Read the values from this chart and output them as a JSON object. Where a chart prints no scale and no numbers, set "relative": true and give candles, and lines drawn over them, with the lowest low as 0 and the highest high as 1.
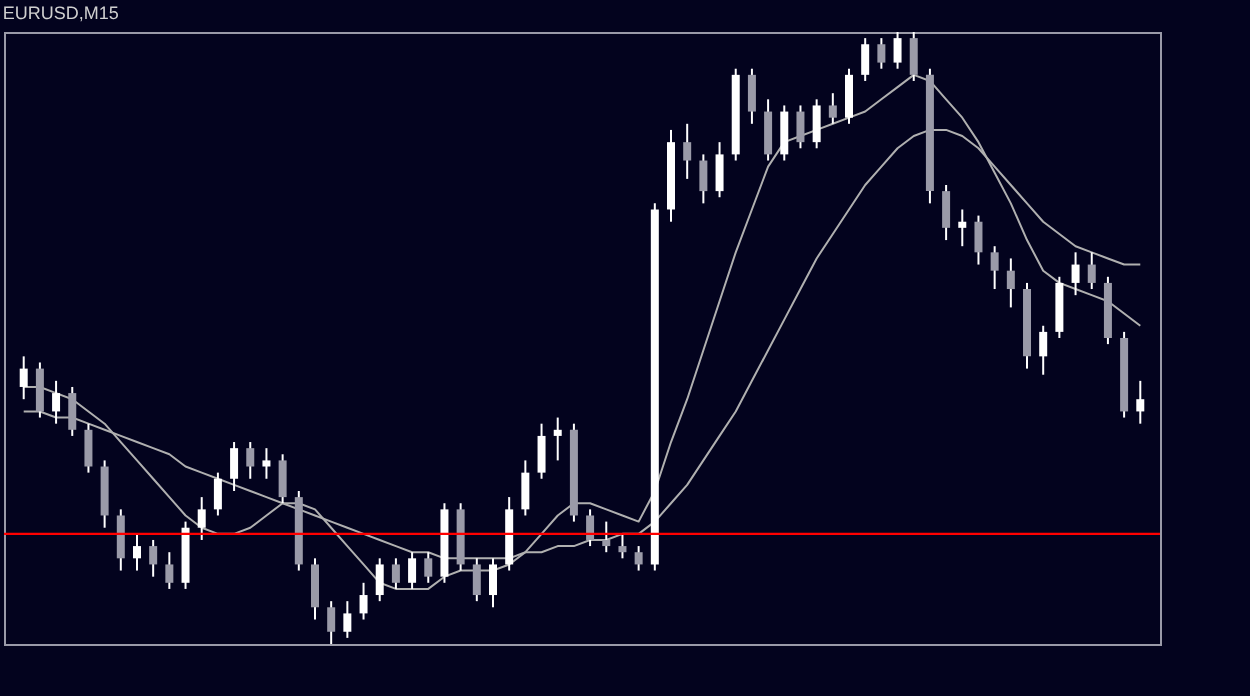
{
  "chart_data": {
    "type": "candlestick",
    "title": "EURUSD,M15",
    "relative": true,
    "tick_labels": false,
    "categories": [
      null,
      null,
      null,
      null,
      null,
      null,
      null,
      null,
      null,
      null,
      null,
      null,
      null,
      null,
      null,
      null,
      null,
      null,
      null,
      null,
      null,
      null,
      null,
      null,
      null,
      null,
      null,
      null,
      null,
      null,
      null,
      null,
      null,
      null,
      null,
      null,
      null,
      null,
      null,
      null,
      null,
      null,
      null,
      null,
      null,
      null,
      null,
      null,
      null,
      null,
      null,
      null,
      null,
      null,
      null,
      null,
      null,
      null,
      null,
      null,
      null,
      null,
      null,
      null,
      null,
      null,
      null,
      null,
      null,
      null
    ],
    "series": [
      {
        "type": "candlestick",
        "color": "#ffffff",
        "colors": [
          "#ffffff",
          "#9a9aa8",
          "#ffffff",
          "#9a9aa8",
          "#9a9aa8",
          "#9a9aa8",
          "#9a9aa8",
          "#ffffff",
          "#9a9aa8",
          "#9a9aa8",
          "#ffffff",
          "#ffffff",
          "#ffffff",
          "#ffffff",
          "#9a9aa8",
          "#ffffff",
          "#9a9aa8",
          "#9a9aa8",
          "#9a9aa8",
          "#9a9aa8",
          "#ffffff",
          "#ffffff",
          "#ffffff",
          "#9a9aa8",
          "#ffffff",
          "#9a9aa8",
          "#ffffff",
          "#9a9aa8",
          "#9a9aa8",
          "#ffffff",
          "#ffffff",
          "#ffffff",
          "#ffffff",
          "#ffffff",
          "#9a9aa8",
          "#9a9aa8",
          "#9a9aa8",
          "#9a9aa8",
          "#9a9aa8",
          "#ffffff",
          "#ffffff",
          "#9a9aa8",
          "#9a9aa8",
          "#ffffff",
          "#ffffff",
          "#9a9aa8",
          "#9a9aa8",
          "#ffffff",
          "#9a9aa8",
          "#ffffff",
          "#9a9aa8",
          "#ffffff",
          "#ffffff",
          "#9a9aa8",
          "#ffffff",
          "#9a9aa8",
          "#9a9aa8",
          "#9a9aa8",
          "#ffffff",
          "#9a9aa8",
          "#9a9aa8",
          "#9a9aa8",
          "#9a9aa8",
          "#ffffff",
          "#ffffff",
          "#ffffff",
          "#9a9aa8",
          "#9a9aa8",
          "#9a9aa8",
          "#ffffff"
        ],
        "ohlc": [
          [
            0.42,
            0.47,
            0.4,
            0.45
          ],
          [
            0.45,
            0.46,
            0.37,
            0.38
          ],
          [
            0.38,
            0.43,
            0.36,
            0.41
          ],
          [
            0.41,
            0.42,
            0.34,
            0.35
          ],
          [
            0.35,
            0.36,
            0.28,
            0.29
          ],
          [
            0.29,
            0.3,
            0.19,
            0.21
          ],
          [
            0.21,
            0.22,
            0.12,
            0.14
          ],
          [
            0.14,
            0.18,
            0.12,
            0.16
          ],
          [
            0.16,
            0.17,
            0.11,
            0.13
          ],
          [
            0.13,
            0.15,
            0.09,
            0.1
          ],
          [
            0.1,
            0.2,
            0.09,
            0.19
          ],
          [
            0.19,
            0.24,
            0.17,
            0.22
          ],
          [
            0.22,
            0.28,
            0.21,
            0.27
          ],
          [
            0.27,
            0.33,
            0.25,
            0.32
          ],
          [
            0.32,
            0.33,
            0.27,
            0.29
          ],
          [
            0.29,
            0.32,
            0.27,
            0.3
          ],
          [
            0.3,
            0.31,
            0.23,
            0.24
          ],
          [
            0.24,
            0.25,
            0.12,
            0.13
          ],
          [
            0.13,
            0.14,
            0.04,
            0.06
          ],
          [
            0.06,
            0.07,
            0.0,
            0.02
          ],
          [
            0.02,
            0.07,
            0.01,
            0.05
          ],
          [
            0.05,
            0.1,
            0.04,
            0.08
          ],
          [
            0.08,
            0.14,
            0.07,
            0.13
          ],
          [
            0.13,
            0.14,
            0.09,
            0.1
          ],
          [
            0.1,
            0.15,
            0.09,
            0.14
          ],
          [
            0.14,
            0.15,
            0.1,
            0.11
          ],
          [
            0.11,
            0.23,
            0.1,
            0.22
          ],
          [
            0.22,
            0.23,
            0.12,
            0.13
          ],
          [
            0.13,
            0.14,
            0.07,
            0.08
          ],
          [
            0.08,
            0.14,
            0.06,
            0.13
          ],
          [
            0.13,
            0.24,
            0.12,
            0.22
          ],
          [
            0.22,
            0.3,
            0.21,
            0.28
          ],
          [
            0.28,
            0.36,
            0.27,
            0.34
          ],
          [
            0.34,
            0.37,
            0.3,
            0.35
          ],
          [
            0.35,
            0.36,
            0.2,
            0.21
          ],
          [
            0.21,
            0.22,
            0.16,
            0.17
          ],
          [
            0.17,
            0.2,
            0.15,
            0.16
          ],
          [
            0.16,
            0.18,
            0.14,
            0.15
          ],
          [
            0.15,
            0.16,
            0.12,
            0.13
          ],
          [
            0.13,
            0.72,
            0.12,
            0.71
          ],
          [
            0.71,
            0.84,
            0.69,
            0.82
          ],
          [
            0.82,
            0.85,
            0.76,
            0.79
          ],
          [
            0.79,
            0.8,
            0.72,
            0.74
          ],
          [
            0.74,
            0.82,
            0.73,
            0.8
          ],
          [
            0.8,
            0.94,
            0.79,
            0.93
          ],
          [
            0.93,
            0.94,
            0.85,
            0.87
          ],
          [
            0.87,
            0.89,
            0.79,
            0.8
          ],
          [
            0.8,
            0.88,
            0.79,
            0.87
          ],
          [
            0.87,
            0.88,
            0.81,
            0.82
          ],
          [
            0.82,
            0.89,
            0.81,
            0.88
          ],
          [
            0.88,
            0.9,
            0.85,
            0.86
          ],
          [
            0.86,
            0.94,
            0.85,
            0.93
          ],
          [
            0.93,
            0.99,
            0.92,
            0.98
          ],
          [
            0.98,
            0.99,
            0.94,
            0.95
          ],
          [
            0.95,
            1.0,
            0.94,
            0.99
          ],
          [
            0.99,
            1.0,
            0.92,
            0.93
          ],
          [
            0.93,
            0.94,
            0.72,
            0.74
          ],
          [
            0.74,
            0.75,
            0.66,
            0.68
          ],
          [
            0.68,
            0.71,
            0.65,
            0.69
          ],
          [
            0.69,
            0.7,
            0.62,
            0.64
          ],
          [
            0.64,
            0.65,
            0.58,
            0.61
          ],
          [
            0.61,
            0.63,
            0.55,
            0.58
          ],
          [
            0.58,
            0.59,
            0.45,
            0.47
          ],
          [
            0.47,
            0.52,
            0.44,
            0.51
          ],
          [
            0.51,
            0.6,
            0.5,
            0.59
          ],
          [
            0.59,
            0.64,
            0.57,
            0.62
          ],
          [
            0.62,
            0.64,
            0.58,
            0.59
          ],
          [
            0.59,
            0.6,
            0.49,
            0.5
          ],
          [
            0.5,
            0.51,
            0.37,
            0.38
          ],
          [
            0.38,
            0.43,
            0.36,
            0.4
          ]
        ]
      },
      {
        "type": "line",
        "color": "#b0b0b0",
        "values": [
          0.42,
          0.42,
          0.41,
          0.4,
          0.38,
          0.36,
          0.33,
          0.3,
          0.27,
          0.24,
          0.21,
          0.19,
          0.18,
          0.18,
          0.19,
          0.21,
          0.23,
          0.23,
          0.22,
          0.19,
          0.16,
          0.13,
          0.1,
          0.09,
          0.09,
          0.09,
          0.11,
          0.12,
          0.12,
          0.12,
          0.13,
          0.15,
          0.18,
          0.21,
          0.23,
          0.23,
          0.22,
          0.21,
          0.2,
          0.25,
          0.33,
          0.4,
          0.48,
          0.56,
          0.64,
          0.71,
          0.78,
          0.82,
          0.83,
          0.84,
          0.85,
          0.86,
          0.87,
          0.89,
          0.91,
          0.93,
          0.92,
          0.89,
          0.86,
          0.82,
          0.77,
          0.72,
          0.66,
          0.61,
          0.59,
          0.58,
          0.57,
          0.56,
          0.54,
          0.52
        ]
      },
      {
        "type": "line",
        "color": "#b0b0b0",
        "values": [
          0.38,
          0.38,
          0.37,
          0.37,
          0.36,
          0.35,
          0.34,
          0.33,
          0.32,
          0.31,
          0.29,
          0.28,
          0.27,
          0.26,
          0.25,
          0.24,
          0.23,
          0.22,
          0.21,
          0.2,
          0.19,
          0.18,
          0.17,
          0.16,
          0.15,
          0.15,
          0.14,
          0.14,
          0.14,
          0.14,
          0.14,
          0.15,
          0.15,
          0.16,
          0.16,
          0.17,
          0.17,
          0.18,
          0.18,
          0.2,
          0.23,
          0.26,
          0.3,
          0.34,
          0.38,
          0.43,
          0.48,
          0.53,
          0.58,
          0.63,
          0.67,
          0.71,
          0.75,
          0.78,
          0.81,
          0.83,
          0.84,
          0.84,
          0.83,
          0.81,
          0.78,
          0.75,
          0.72,
          0.69,
          0.67,
          0.65,
          0.64,
          0.63,
          0.62,
          0.62
        ]
      }
    ],
    "ref_lines": [
      {
        "axis": "y",
        "value": 0.18,
        "color": "#ff0000"
      }
    ]
  }
}
